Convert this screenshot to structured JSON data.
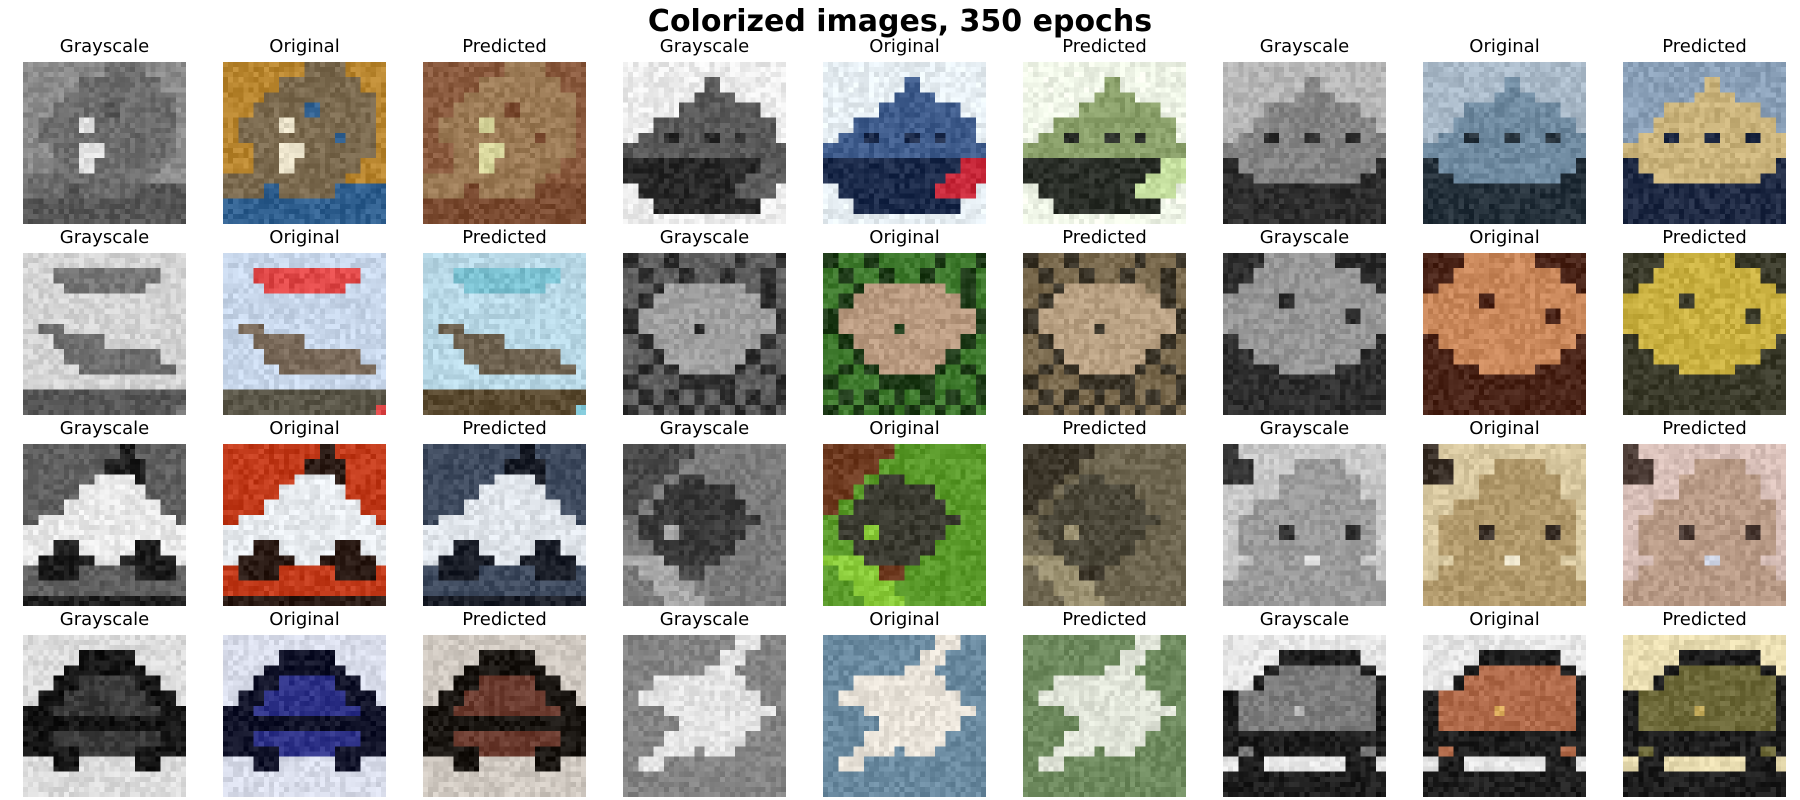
{
  "figure": {
    "title": "Colorized images, 350 epochs"
  },
  "rows": [
    {
      "cells": [
        {
          "label": "Grayscale",
          "subject": "cat",
          "mode": "gray"
        },
        {
          "label": "Original",
          "subject": "cat",
          "mode": "original",
          "palette": [
            "#b9862f",
            "#7b6a4f",
            "#2f5f8f",
            "#e8e0c8"
          ]
        },
        {
          "label": "Predicted",
          "subject": "cat",
          "mode": "predicted",
          "palette": [
            "#8a5a3e",
            "#9b7a55",
            "#7a4a30",
            "#d6d49a"
          ]
        },
        {
          "label": "Grayscale",
          "subject": "ship",
          "mode": "gray"
        },
        {
          "label": "Original",
          "subject": "ship",
          "mode": "original",
          "palette": [
            "#e6eef3",
            "#3f5c8c",
            "#1b2a4a",
            "#c8283a"
          ]
        },
        {
          "label": "Predicted",
          "subject": "ship",
          "mode": "predicted",
          "palette": [
            "#eef4e6",
            "#8aa06a",
            "#2a2e28",
            "#c6e0a0"
          ]
        },
        {
          "label": "Grayscale",
          "subject": "boat",
          "mode": "gray"
        },
        {
          "label": "Original",
          "subject": "boat",
          "mode": "original",
          "palette": [
            "#a9b9c8",
            "#6f8aa0",
            "#24303a",
            "#d9e3ea"
          ]
        },
        {
          "label": "Predicted",
          "subject": "boat",
          "mode": "predicted",
          "palette": [
            "#8aa0b8",
            "#c9b27a",
            "#1f2a44",
            "#e2d6b0"
          ]
        }
      ]
    },
    {
      "cells": [
        {
          "label": "Grayscale",
          "subject": "plane",
          "mode": "gray"
        },
        {
          "label": "Original",
          "subject": "plane",
          "mode": "original",
          "palette": [
            "#c7d6ea",
            "#7a6a5a",
            "#5a5648",
            "#e04848"
          ]
        },
        {
          "label": "Predicted",
          "subject": "plane",
          "mode": "predicted",
          "palette": [
            "#b8d8e6",
            "#6e6250",
            "#5a4a30",
            "#7ac0d0"
          ]
        },
        {
          "label": "Grayscale",
          "subject": "frog",
          "mode": "gray"
        },
        {
          "label": "Original",
          "subject": "frog",
          "mode": "original",
          "palette": [
            "#3f7a2e",
            "#b99a80",
            "#1e3a18",
            "#6fae4a"
          ]
        },
        {
          "label": "Predicted",
          "subject": "frog",
          "mode": "predicted",
          "palette": [
            "#7a6a4e",
            "#b8a082",
            "#3a3428",
            "#9a8a6a"
          ]
        },
        {
          "label": "Grayscale",
          "subject": "frog2",
          "mode": "gray"
        },
        {
          "label": "Original",
          "subject": "frog2",
          "mode": "original",
          "palette": [
            "#b06a40",
            "#c9875a",
            "#4a2418",
            "#e0a878"
          ]
        },
        {
          "label": "Predicted",
          "subject": "frog2",
          "mode": "predicted",
          "palette": [
            "#6e6a4a",
            "#c9b040",
            "#3a3a2a",
            "#e0c858"
          ]
        }
      ]
    },
    {
      "cells": [
        {
          "label": "Grayscale",
          "subject": "car",
          "mode": "gray"
        },
        {
          "label": "Original",
          "subject": "car",
          "mode": "original",
          "palette": [
            "#c23a1a",
            "#e6eaee",
            "#2a1a14",
            "#ee5a20"
          ]
        },
        {
          "label": "Predicted",
          "subject": "car",
          "mode": "predicted",
          "palette": [
            "#3e4a5e",
            "#dfe4ea",
            "#1a1e28",
            "#6a88b0"
          ]
        },
        {
          "label": "Grayscale",
          "subject": "frog3",
          "mode": "gray"
        },
        {
          "label": "Original",
          "subject": "frog3",
          "mode": "original",
          "palette": [
            "#5a9a2a",
            "#3a3a30",
            "#6e3a20",
            "#8acb3a"
          ]
        },
        {
          "label": "Predicted",
          "subject": "frog3",
          "mode": "predicted",
          "palette": [
            "#6e6650",
            "#4a4638",
            "#3a3428",
            "#9a9070"
          ]
        },
        {
          "label": "Grayscale",
          "subject": "cat2",
          "mode": "gray"
        },
        {
          "label": "Original",
          "subject": "cat2",
          "mode": "original",
          "palette": [
            "#d8c8a0",
            "#b0986a",
            "#3a3028",
            "#e8e0c8"
          ]
        },
        {
          "label": "Predicted",
          "subject": "cat2",
          "mode": "predicted",
          "palette": [
            "#d8bfb8",
            "#b89a86",
            "#4a3a34",
            "#d0d6e6"
          ]
        }
      ]
    },
    {
      "cells": [
        {
          "label": "Grayscale",
          "subject": "truck",
          "mode": "gray"
        },
        {
          "label": "Original",
          "subject": "truck",
          "mode": "original",
          "palette": [
            "#d8dcea",
            "#2e3288",
            "#12142a",
            "#8a8acb"
          ]
        },
        {
          "label": "Predicted",
          "subject": "truck",
          "mode": "predicted",
          "palette": [
            "#cfc8c0",
            "#6a3a2e",
            "#1a1612",
            "#b8784a"
          ]
        },
        {
          "label": "Grayscale",
          "subject": "jet",
          "mode": "gray"
        },
        {
          "label": "Original",
          "subject": "jet",
          "mode": "original",
          "palette": [
            "#6a8aa0",
            "#e8e2d8",
            "#4a4a48",
            "#b0a890"
          ]
        },
        {
          "label": "Predicted",
          "subject": "jet",
          "mode": "predicted",
          "palette": [
            "#6e8a5e",
            "#e0e4d8",
            "#4a4a40",
            "#c85a3a"
          ]
        },
        {
          "label": "Grayscale",
          "subject": "lorry",
          "mode": "gray"
        },
        {
          "label": "Original",
          "subject": "lorry",
          "mode": "original",
          "palette": [
            "#e6e6e6",
            "#b06a4a",
            "#1e1e1e",
            "#e0b060"
          ]
        },
        {
          "label": "Predicted",
          "subject": "lorry",
          "mode": "predicted",
          "palette": [
            "#e8dcb0",
            "#6e6a3a",
            "#1e1e1e",
            "#c8b060"
          ]
        }
      ]
    }
  ]
}
